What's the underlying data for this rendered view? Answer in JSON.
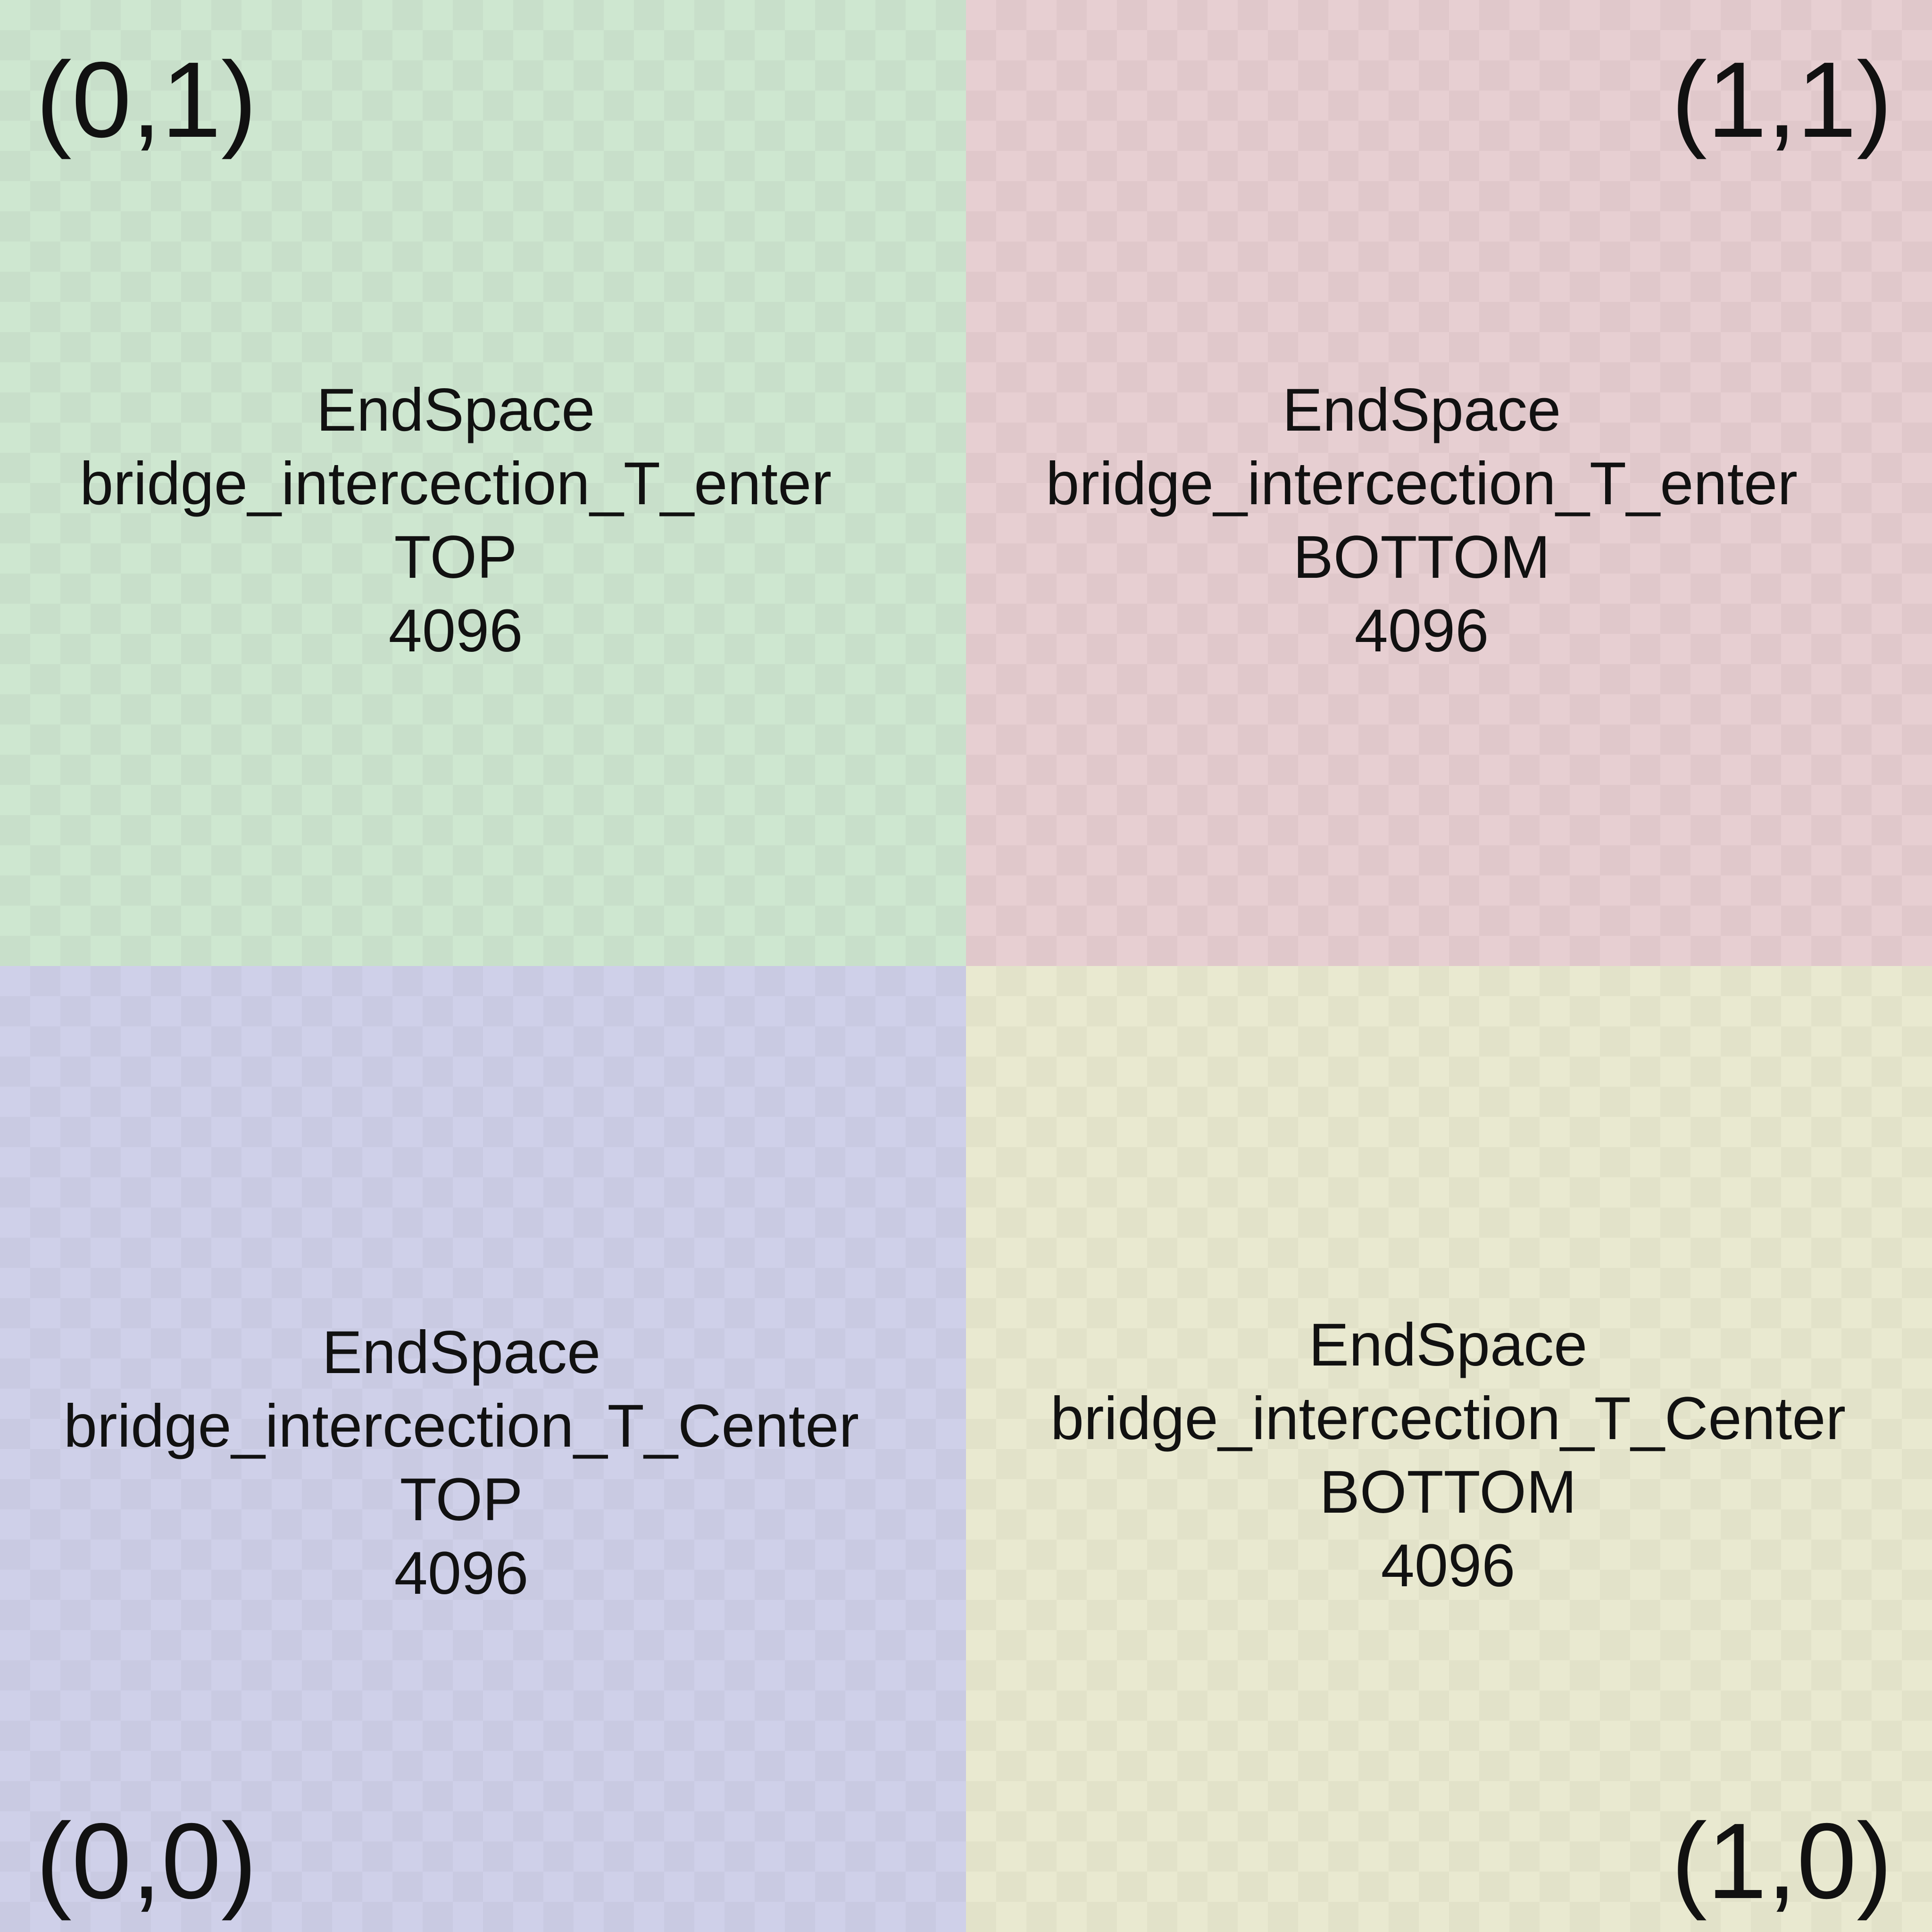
{
  "quadrants": {
    "top_left": {
      "color": "#cee7d0",
      "alt": "#c8dfca",
      "coord": "(0,1)",
      "lines": [
        "EndSpace",
        "bridge_intercection_T_enter",
        "TOP",
        "4096"
      ]
    },
    "top_right": {
      "color": "#e7cfd2",
      "alt": "#e0c8cb",
      "coord": "(1,1)",
      "lines": [
        "EndSpace",
        "bridge_intercection_T_enter",
        "BOTTOM",
        "4096"
      ]
    },
    "bottom_left": {
      "color": "#cfd0e9",
      "alt": "#c9cae2",
      "coord": "(0,0)",
      "lines": [
        "EndSpace",
        "bridge_intercection_T_Center",
        "TOP",
        "4096"
      ]
    },
    "bottom_right": {
      "color": "#e9e9d0",
      "alt": "#e2e2c9",
      "coord": "(1,0)",
      "lines": [
        "EndSpace",
        "bridge_intercection_T_Center",
        "BOTTOM",
        "4096"
      ]
    }
  }
}
